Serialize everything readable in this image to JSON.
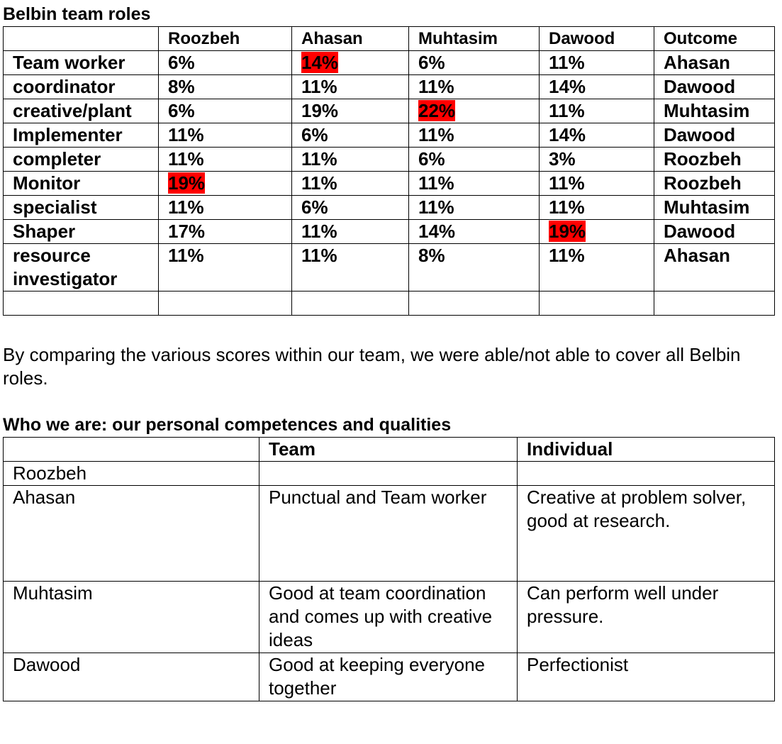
{
  "belbin": {
    "title": "Belbin team roles",
    "headers": [
      "",
      "Roozbeh",
      "Ahasan",
      "Muhtasim",
      "Dawood",
      "Outcome"
    ],
    "rows": [
      {
        "role": "Team worker",
        "scores": [
          "6%",
          "14%",
          "6%",
          "11%"
        ],
        "outcome": "Ahasan",
        "highlight": 1
      },
      {
        "role": "coordinator",
        "scores": [
          "8%",
          "11%",
          "11%",
          "14%"
        ],
        "outcome": "Dawood",
        "highlight": null
      },
      {
        "role": "creative/plant",
        "scores": [
          "6%",
          "19%",
          "22%",
          "11%"
        ],
        "outcome": "Muhtasim",
        "highlight": 2
      },
      {
        "role": "Implementer",
        "scores": [
          "11%",
          "6%",
          "11%",
          "14%"
        ],
        "outcome": "Dawood",
        "highlight": null
      },
      {
        "role": "completer",
        "scores": [
          "11%",
          "11%",
          "6%",
          "3%"
        ],
        "outcome": "Roozbeh",
        "highlight": null
      },
      {
        "role": "Monitor",
        "scores": [
          "19%",
          "11%",
          "11%",
          "11%"
        ],
        "outcome": "Roozbeh",
        "highlight": 0
      },
      {
        "role": "specialist",
        "scores": [
          "11%",
          "6%",
          "11%",
          "11%"
        ],
        "outcome": "Muhtasim",
        "highlight": null
      },
      {
        "role": "Shaper",
        "scores": [
          "17%",
          "11%",
          "14%",
          "19%"
        ],
        "outcome": "Dawood",
        "highlight": 3
      },
      {
        "role": "resource investigator",
        "scores": [
          "11%",
          "11%",
          "8%",
          "11%"
        ],
        "outcome": "Ahasan",
        "highlight": null
      }
    ],
    "highlight_color": "#ff0000"
  },
  "paragraph": "By comparing the various scores within our team, we were able/not able to cover all Belbin roles.",
  "qualities": {
    "title": "Who we are: our personal competences and qualities",
    "headers": [
      "",
      "Team",
      "Individual"
    ],
    "rows": [
      {
        "name": "Roozbeh",
        "team": "",
        "individual": ""
      },
      {
        "name": "Ahasan",
        "team": "Punctual and Team worker",
        "individual": "Creative at problem solver, good at research."
      },
      {
        "name": "Muhtasim",
        "team": "Good at team coordination and comes up with creative ideas",
        "individual": "Can perform well under pressure."
      },
      {
        "name": "Dawood",
        "team": "Good at keeping everyone together",
        "individual": "Perfectionist"
      }
    ]
  }
}
